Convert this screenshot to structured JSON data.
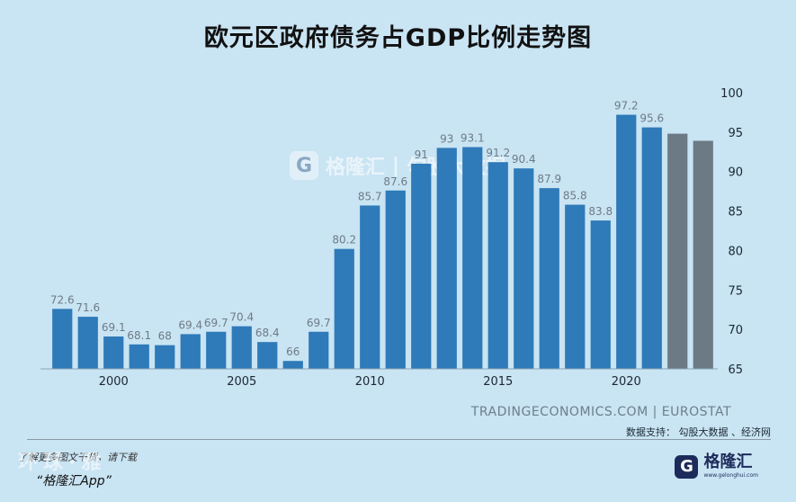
{
  "title": "欧元区政府债务占GDP比例走势图",
  "source": "TRADINGECONOMICS.COM | EUROSTAT",
  "support": "数据支持：  勾股大数据 、经济网",
  "footer": {
    "ghost": "环球·雅",
    "note": "了解更多图文干货，请下载",
    "app": "“格隆汇App”"
  },
  "watermark": {
    "brand": "格隆汇",
    "divider": "|",
    "brand2": "勾股大数据"
  },
  "logo": {
    "letter": "G",
    "name": "格隆汇",
    "sub": "www.gelonghui.com"
  },
  "colors": {
    "bar": "#2f7ab8",
    "forecast": "#6b7a84",
    "label": "#6e7b86",
    "axis": "#1b2733"
  },
  "chart_data": {
    "type": "bar",
    "x": [
      1998,
      1999,
      2000,
      2001,
      2002,
      2003,
      2004,
      2005,
      2006,
      2007,
      2008,
      2009,
      2010,
      2011,
      2012,
      2013,
      2014,
      2015,
      2016,
      2017,
      2018,
      2019,
      2020,
      2021,
      2022,
      2023
    ],
    "values": [
      72.6,
      71.6,
      69.1,
      68.1,
      68,
      69.4,
      69.7,
      70.4,
      68.4,
      66,
      69.7,
      80.2,
      85.7,
      87.6,
      91,
      93,
      93.1,
      91.2,
      90.4,
      87.9,
      85.8,
      83.8,
      97.2,
      95.6,
      94.8,
      93.9
    ],
    "data_labels": [
      "72.6",
      "71.6",
      "69.1",
      "68.1",
      "68",
      "69.4",
      "69.7",
      "70.4",
      "68.4",
      "66",
      "69.7",
      "80.2",
      "85.7",
      "87.6",
      "91",
      "93",
      "93.1",
      "91.2",
      "90.4",
      "87.9",
      "85.8",
      "83.8",
      "97.2",
      "95.6",
      "",
      ""
    ],
    "forecast": [
      false,
      false,
      false,
      false,
      false,
      false,
      false,
      false,
      false,
      false,
      false,
      false,
      false,
      false,
      false,
      false,
      false,
      false,
      false,
      false,
      false,
      false,
      false,
      false,
      true,
      true
    ],
    "x_ticks": [
      "2000",
      "2005",
      "2010",
      "2015",
      "2020"
    ],
    "y_ticks": [
      "65",
      "70",
      "75",
      "80",
      "85",
      "90",
      "95",
      "100"
    ],
    "ylim": [
      65,
      100
    ],
    "grid": false
  }
}
